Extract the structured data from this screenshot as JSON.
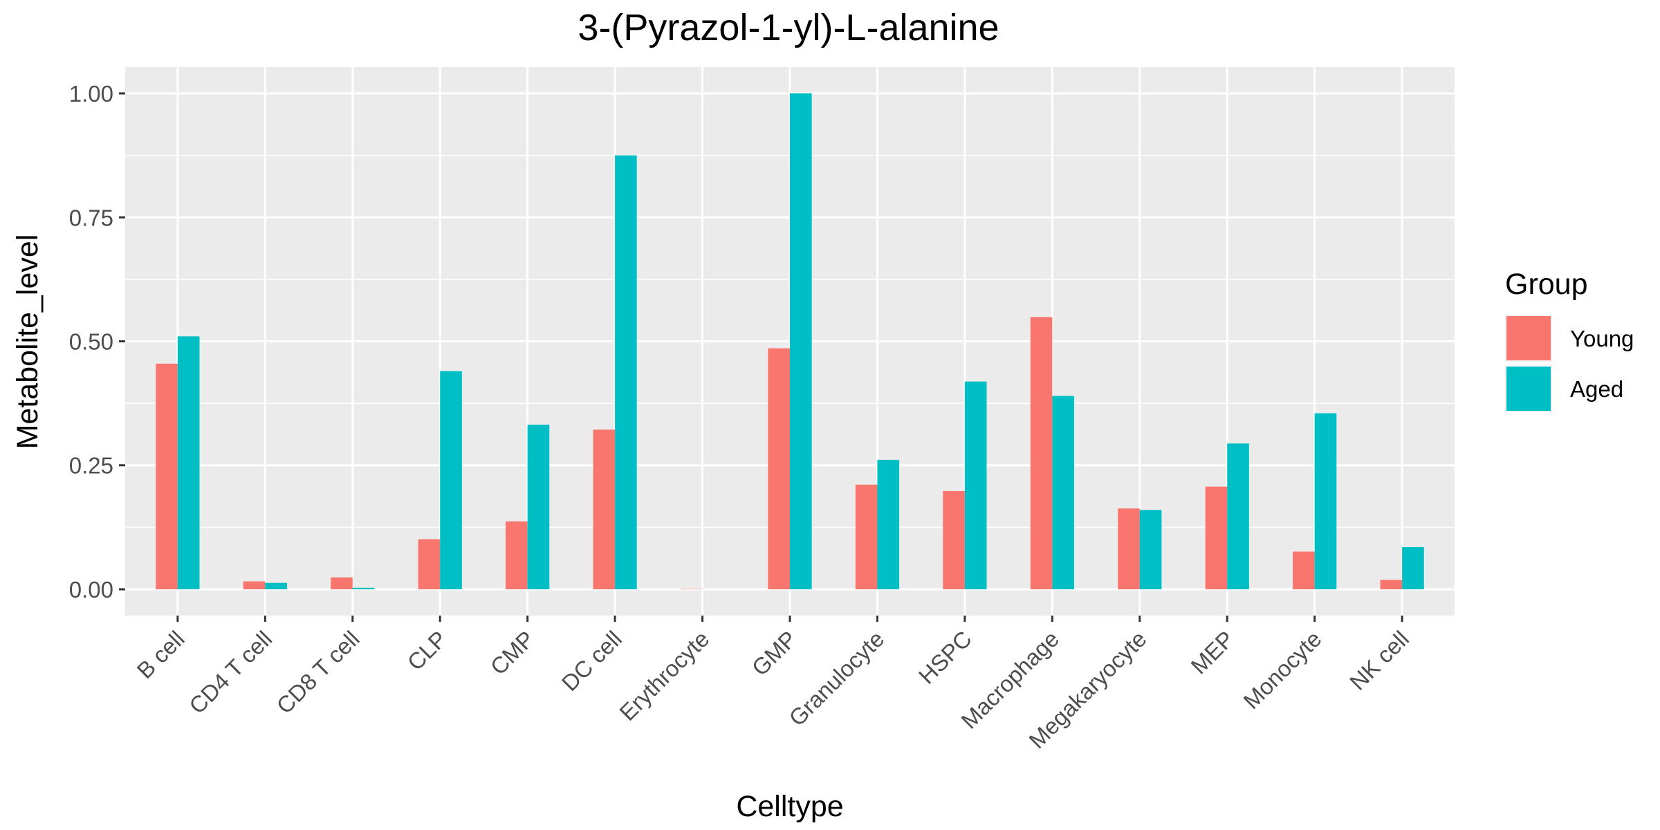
{
  "chart_data": {
    "type": "bar",
    "title": "3-(Pyrazol-1-yl)-L-alanine",
    "xlabel": "Celltype",
    "ylabel": "Metabolite_level",
    "categories": [
      "B cell",
      "CD4 T cell",
      "CD8 T cell",
      "CLP",
      "CMP",
      "DC cell",
      "Erythrocyte",
      "GMP",
      "Granulocyte",
      "HSPC",
      "Macrophage",
      "Megakaryocyte",
      "MEP",
      "Monocyte",
      "NK cell"
    ],
    "series": [
      {
        "name": "Young",
        "color": "#F8766D",
        "values": [
          0.455,
          0.016,
          0.024,
          0.101,
          0.137,
          0.322,
          0.001,
          0.486,
          0.211,
          0.198,
          0.549,
          0.163,
          0.207,
          0.076,
          0.019
        ]
      },
      {
        "name": "Aged",
        "color": "#00BFC4",
        "values": [
          0.51,
          0.013,
          0.003,
          0.44,
          0.332,
          0.875,
          0.0,
          1.0,
          0.261,
          0.419,
          0.39,
          0.16,
          0.294,
          0.355,
          0.085
        ]
      }
    ],
    "ylim": [
      -0.053,
      1.053
    ],
    "yticks": [
      0,
      0.25,
      0.5,
      0.75,
      1
    ],
    "ytick_labels": [
      "0.00",
      "0.25",
      "0.50",
      "0.75",
      "1.00"
    ],
    "legend": {
      "title": "Group",
      "position": "right"
    },
    "grid": true,
    "panel_background": "#EBEBEB",
    "grid_color": "#FFFFFF"
  }
}
